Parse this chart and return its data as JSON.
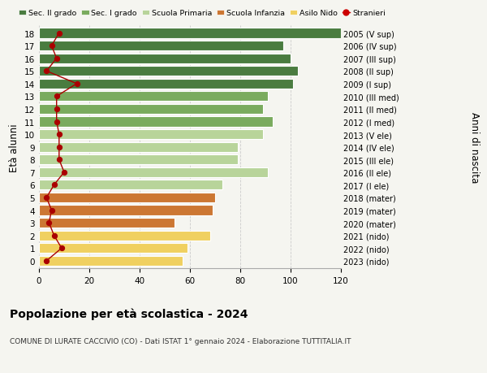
{
  "ages": [
    18,
    17,
    16,
    15,
    14,
    13,
    12,
    11,
    10,
    9,
    8,
    7,
    6,
    5,
    4,
    3,
    2,
    1,
    0
  ],
  "years": [
    "2005 (V sup)",
    "2006 (IV sup)",
    "2007 (III sup)",
    "2008 (II sup)",
    "2009 (I sup)",
    "2010 (III med)",
    "2011 (II med)",
    "2012 (I med)",
    "2013 (V ele)",
    "2014 (IV ele)",
    "2015 (III ele)",
    "2016 (II ele)",
    "2017 (I ele)",
    "2018 (mater)",
    "2019 (mater)",
    "2020 (mater)",
    "2021 (nido)",
    "2022 (nido)",
    "2023 (nido)"
  ],
  "bar_values": [
    120,
    97,
    100,
    103,
    101,
    91,
    89,
    93,
    89,
    79,
    79,
    91,
    73,
    70,
    69,
    54,
    68,
    59,
    57
  ],
  "bar_colors": [
    "#4a7c40",
    "#4a7c40",
    "#4a7c40",
    "#4a7c40",
    "#4a7c40",
    "#7aab5e",
    "#7aab5e",
    "#7aab5e",
    "#b8d49a",
    "#b8d49a",
    "#b8d49a",
    "#b8d49a",
    "#b8d49a",
    "#cc7733",
    "#cc7733",
    "#cc7733",
    "#f0d060",
    "#f0d060",
    "#f0d060"
  ],
  "stranieri_values": [
    8,
    5,
    7,
    3,
    15,
    7,
    7,
    7,
    8,
    8,
    8,
    10,
    6,
    3,
    5,
    4,
    6,
    9,
    3
  ],
  "legend_labels": [
    "Sec. II grado",
    "Sec. I grado",
    "Scuola Primaria",
    "Scuola Infanzia",
    "Asilo Nido",
    "Stranieri"
  ],
  "legend_colors": [
    "#4a7c40",
    "#7aab5e",
    "#b8d49a",
    "#cc7733",
    "#f0d060",
    "#cc0000"
  ],
  "ylabel": "Età alunni",
  "ylabel_right": "Anni di nascita",
  "title": "Popolazione per età scolastica - 2024",
  "subtitle": "COMUNE DI LURATE CACCIVIO (CO) - Dati ISTAT 1° gennaio 2024 - Elaborazione TUTTITALIA.IT",
  "xlim": [
    0,
    120
  ],
  "xticks": [
    0,
    20,
    40,
    60,
    80,
    100,
    120
  ],
  "bar_height": 0.78,
  "bg_color": "#f5f5f0",
  "grid_color": "#cccccc",
  "stranieri_color": "#aa0000",
  "stranieri_line_color": "#aa0000"
}
